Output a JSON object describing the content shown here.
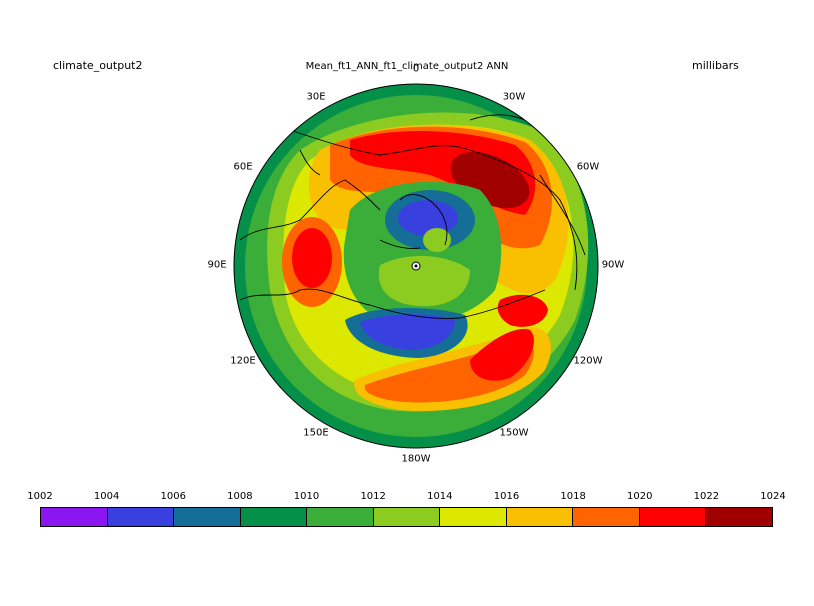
{
  "header": {
    "left_title": "climate_output2",
    "center_title": "Mean_ft1_ANN_ft1_climate_output2  ANN",
    "units": "millibars"
  },
  "longitude_labels": [
    "30E",
    "0",
    "30W",
    "60E",
    "60W",
    "90E",
    "90W",
    "120E",
    "120W",
    "150E",
    "150W",
    "180W"
  ],
  "colorbar": {
    "levels": [
      "1002",
      "1004",
      "1006",
      "1008",
      "1010",
      "1012",
      "1014",
      "1016",
      "1018",
      "1020",
      "1022",
      "1024"
    ],
    "colors": [
      "#8b16f0",
      "#3840e0",
      "#146e96",
      "#05904a",
      "#3aae38",
      "#8ccc20",
      "#dce800",
      "#f8c000",
      "#ff6400",
      "#ff0000",
      "#a00000"
    ]
  }
}
